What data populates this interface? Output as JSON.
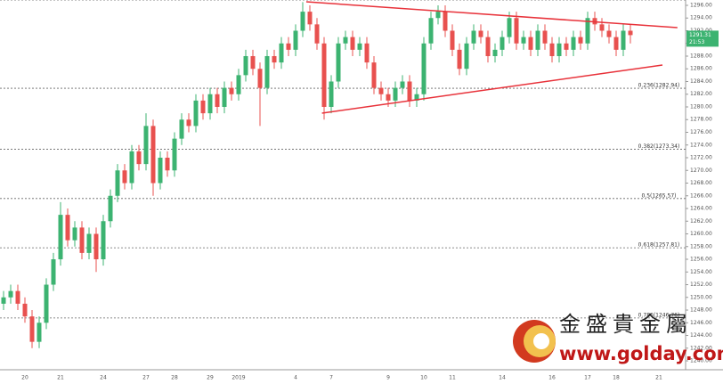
{
  "chart_data": {
    "type": "candlestick",
    "categories": [
      null,
      null,
      null,
      "20",
      null,
      null,
      null,
      null,
      "21",
      null,
      null,
      null,
      null,
      null,
      "24",
      null,
      null,
      null,
      null,
      null,
      "27",
      null,
      null,
      null,
      "28",
      null,
      null,
      null,
      null,
      "29",
      null,
      null,
      null,
      "2019",
      null,
      null,
      null,
      null,
      null,
      null,
      null,
      "4",
      null,
      null,
      null,
      null,
      "7",
      null,
      null,
      null,
      null,
      null,
      null,
      null,
      "9",
      null,
      null,
      null,
      null,
      "10",
      null,
      null,
      null,
      "11",
      null,
      null,
      null,
      null,
      null,
      null,
      "14",
      null,
      null,
      null,
      null,
      null,
      null,
      "16",
      null,
      null,
      null,
      null,
      "17",
      null,
      null,
      null,
      "18",
      null,
      null,
      null,
      null,
      null,
      "21"
    ],
    "candles": [
      [
        1249,
        1251,
        1248,
        1250
      ],
      [
        1250,
        1252,
        1249,
        1251
      ],
      [
        1251,
        1252,
        1248,
        1249
      ],
      [
        1249,
        1250,
        1246,
        1247
      ],
      [
        1247,
        1248,
        1242,
        1243
      ],
      [
        1243,
        1247,
        1242,
        1246
      ],
      [
        1246,
        1253,
        1245,
        1252
      ],
      [
        1252,
        1257,
        1251,
        1256
      ],
      [
        1256,
        1265,
        1255,
        1263
      ],
      [
        1263,
        1264,
        1258,
        1259
      ],
      [
        1259,
        1262,
        1258,
        1261
      ],
      [
        1261,
        1262,
        1256,
        1257
      ],
      [
        1257,
        1261,
        1256,
        1260
      ],
      [
        1260,
        1261,
        1254,
        1256
      ],
      [
        1256,
        1263,
        1255,
        1262
      ],
      [
        1262,
        1267,
        1261,
        1266
      ],
      [
        1266,
        1271,
        1265,
        1270
      ],
      [
        1270,
        1271,
        1267,
        1268
      ],
      [
        1268,
        1274,
        1267,
        1273
      ],
      [
        1273,
        1274,
        1270,
        1271
      ],
      [
        1271,
        1279,
        1270,
        1277
      ],
      [
        1277,
        1278,
        1266,
        1268
      ],
      [
        1268,
        1273,
        1267,
        1272
      ],
      [
        1272,
        1273,
        1269,
        1270
      ],
      [
        1270,
        1276,
        1269,
        1275
      ],
      [
        1275,
        1279,
        1274,
        1278
      ],
      [
        1278,
        1279,
        1276,
        1277
      ],
      [
        1277,
        1282,
        1276,
        1281
      ],
      [
        1281,
        1282,
        1278,
        1279
      ],
      [
        1279,
        1283,
        1278,
        1282
      ],
      [
        1282,
        1283,
        1279,
        1280
      ],
      [
        1280,
        1284,
        1279,
        1283
      ],
      [
        1283,
        1284,
        1281,
        1282
      ],
      [
        1282,
        1286,
        1281,
        1285
      ],
      [
        1285,
        1289,
        1284,
        1288
      ],
      [
        1288,
        1289,
        1285,
        1286
      ],
      [
        1286,
        1287,
        1277,
        1283
      ],
      [
        1283,
        1289,
        1282,
        1288
      ],
      [
        1288,
        1289,
        1286,
        1287
      ],
      [
        1287,
        1291,
        1286,
        1290
      ],
      [
        1290,
        1291,
        1288,
        1289
      ],
      [
        1289,
        1293,
        1288,
        1292
      ],
      [
        1292,
        1296.5,
        1291,
        1295
      ],
      [
        1295,
        1296,
        1292,
        1293
      ],
      [
        1293,
        1294,
        1289,
        1290
      ],
      [
        1290,
        1291,
        1278,
        1280
      ],
      [
        1280,
        1285,
        1279,
        1284
      ],
      [
        1284,
        1291,
        1283,
        1290
      ],
      [
        1290,
        1292,
        1289,
        1291
      ],
      [
        1291,
        1292,
        1288,
        1289
      ],
      [
        1289,
        1291,
        1288,
        1290
      ],
      [
        1290,
        1291,
        1286,
        1287
      ],
      [
        1287,
        1288,
        1282,
        1283
      ],
      [
        1283,
        1284,
        1281,
        1282
      ],
      [
        1282,
        1283,
        1280,
        1281
      ],
      [
        1281,
        1284,
        1280,
        1283
      ],
      [
        1283,
        1285,
        1282,
        1284
      ],
      [
        1284,
        1285,
        1280,
        1281
      ],
      [
        1281,
        1283,
        1280,
        1282
      ],
      [
        1282,
        1291,
        1281,
        1290
      ],
      [
        1290,
        1295,
        1289,
        1294
      ],
      [
        1294,
        1296,
        1293,
        1295
      ],
      [
        1295,
        1296,
        1291,
        1292
      ],
      [
        1292,
        1293,
        1288,
        1289
      ],
      [
        1289,
        1290,
        1285,
        1286
      ],
      [
        1286,
        1291,
        1285,
        1290
      ],
      [
        1290,
        1293,
        1289,
        1292
      ],
      [
        1292,
        1293,
        1290,
        1291
      ],
      [
        1291,
        1292,
        1287,
        1288
      ],
      [
        1288,
        1290,
        1287,
        1289
      ],
      [
        1289,
        1292,
        1288,
        1291
      ],
      [
        1291,
        1295,
        1290,
        1294
      ],
      [
        1294,
        1295,
        1289,
        1290
      ],
      [
        1290,
        1292,
        1289,
        1291
      ],
      [
        1291,
        1292,
        1288,
        1289
      ],
      [
        1289,
        1293,
        1288,
        1292
      ],
      [
        1292,
        1293,
        1289,
        1290
      ],
      [
        1290,
        1291,
        1287,
        1288
      ],
      [
        1288,
        1291,
        1287,
        1290
      ],
      [
        1290,
        1291,
        1288,
        1289
      ],
      [
        1289,
        1292,
        1288,
        1291
      ],
      [
        1291,
        1292,
        1289,
        1290
      ],
      [
        1290,
        1295,
        1289,
        1294
      ],
      [
        1294,
        1295,
        1292,
        1293
      ],
      [
        1293,
        1294,
        1291,
        1292
      ],
      [
        1292,
        1293,
        1290,
        1291
      ],
      [
        1291,
        1292,
        1288,
        1289
      ],
      [
        1289,
        1293,
        1288,
        1292
      ],
      [
        1292,
        1293,
        1290,
        1291.31
      ],
      null,
      null,
      null,
      null
    ],
    "up_color": "#3cb371",
    "down_color": "#e8514f",
    "ylim": [
      1238.6,
      1296.84
    ],
    "yticks": [
      {
        "value": 1240,
        "label": "1240.00"
      },
      {
        "value": 1242,
        "label": "1242.00"
      },
      {
        "value": 1244,
        "label": "1244.00"
      },
      {
        "value": 1246,
        "label": "1246.00"
      },
      {
        "value": 1248,
        "label": "1248.00"
      },
      {
        "value": 1250,
        "label": "1250.00"
      },
      {
        "value": 1252,
        "label": "1252.00"
      },
      {
        "value": 1254,
        "label": "1254.00"
      },
      {
        "value": 1256,
        "label": "1256.00"
      },
      {
        "value": 1258,
        "label": "1258.00"
      },
      {
        "value": 1260,
        "label": "1260.00"
      },
      {
        "value": 1262,
        "label": "1262.00"
      },
      {
        "value": 1264,
        "label": "1264.00"
      },
      {
        "value": 1266,
        "label": "1266.00"
      },
      {
        "value": 1268,
        "label": "1268.00"
      },
      {
        "value": 1270,
        "label": "1270.00"
      },
      {
        "value": 1272,
        "label": "1272.00"
      },
      {
        "value": 1274,
        "label": "1274.00"
      },
      {
        "value": 1276,
        "label": "1276.00"
      },
      {
        "value": 1278,
        "label": "1278.00"
      },
      {
        "value": 1280,
        "label": "1280.00"
      },
      {
        "value": 1282,
        "label": "1282.00"
      },
      {
        "value": 1284,
        "label": "1284.00"
      },
      {
        "value": 1286,
        "label": "1286.00"
      },
      {
        "value": 1288,
        "label": "1288.00"
      },
      {
        "value": 1290,
        "label": "1290.00"
      },
      {
        "value": 1292,
        "label": "1292.00"
      },
      {
        "value": 1294,
        "label": "1294.00"
      },
      {
        "value": 1296,
        "label": "1296.00"
      }
    ],
    "fib_levels": [
      {
        "value": 1296.84,
        "label": "0(1296.84)"
      },
      {
        "value": 1282.94,
        "label": "0.236(1282.94)"
      },
      {
        "value": 1273.34,
        "label": "0.382(1273.34)"
      },
      {
        "value": 1265.57,
        "label": "0.5(1265.57)"
      },
      {
        "value": 1257.81,
        "label": "0.618(1257.81)"
      },
      {
        "value": 1246.76,
        "label": "0.786(1246.76)"
      }
    ],
    "trendlines": [
      {
        "x": [
          42.5,
          94.6
        ],
        "y": [
          1296.56,
          1292.49
        ]
      },
      {
        "x": [
          44.7,
          92.5
        ],
        "y": [
          1279.02,
          1286.6
        ]
      }
    ],
    "trendline_color": "#e8323a",
    "last_price": 1291.31,
    "last_time": "21:53",
    "logo": {
      "name": "金盛貴金屬",
      "url": "www.golday.com"
    }
  }
}
